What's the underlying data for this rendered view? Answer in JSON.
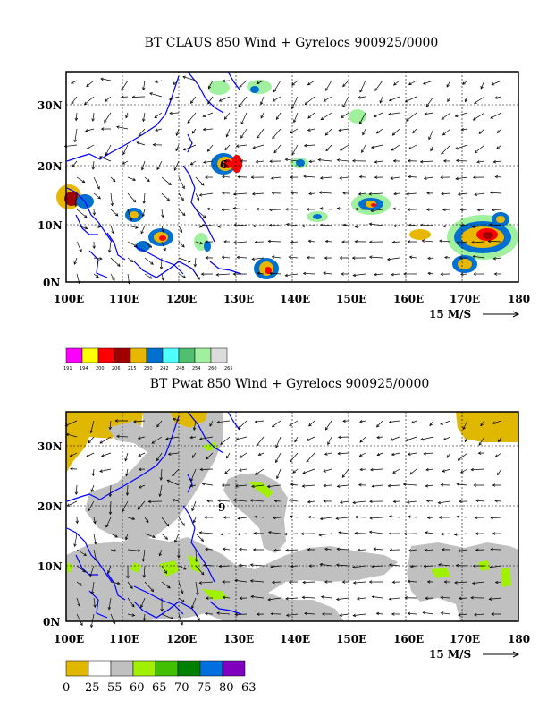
{
  "panel_top": {
    "title": "BT CLAUS 850 Wind + Gyrelocs 900925/0000",
    "lat_labels": [
      "30N",
      "20N",
      "10N",
      "0N"
    ],
    "lon_labels": [
      "100E",
      "110E",
      "120E",
      "130E",
      "140E",
      "150E",
      "160E",
      "170E",
      "180"
    ],
    "wind_scale": "15 M/S",
    "gyre_marker": "6",
    "colorbar_labels": [
      "191",
      "194",
      "200",
      "206",
      "215",
      "230",
      "242",
      "248",
      "254",
      "260",
      "265"
    ],
    "colorbar_colors": [
      "#ff00ff",
      "#ffff00",
      "#ff0000",
      "#a00000",
      "#e8b800",
      "#0070d0",
      "#50ffff",
      "#50c070",
      "#a0f0a0",
      "#dcdcdc"
    ]
  },
  "panel_bottom": {
    "title": "BT Pwat 850 Wind + Gyrelocs 900925/0000",
    "lat_labels": [
      "30N",
      "20N",
      "10N",
      "0N"
    ],
    "lon_labels": [
      "100E",
      "110E",
      "120E",
      "130E",
      "140E",
      "150E",
      "160E",
      "170E",
      "180"
    ],
    "wind_scale": "15 M/S",
    "gyre_marker": "9",
    "colorbar_labels": [
      "0",
      "25",
      "55",
      "60",
      "65",
      "70",
      "75",
      "80",
      "63"
    ],
    "colorbar_colors": [
      "#e0b800",
      "#ffffff",
      "#c0c0c0",
      "#a0f000",
      "#40c000",
      "#008000",
      "#0070e0",
      "#8000c0"
    ]
  },
  "colors": {
    "coast": "#0000ff",
    "frame": "#000000"
  }
}
